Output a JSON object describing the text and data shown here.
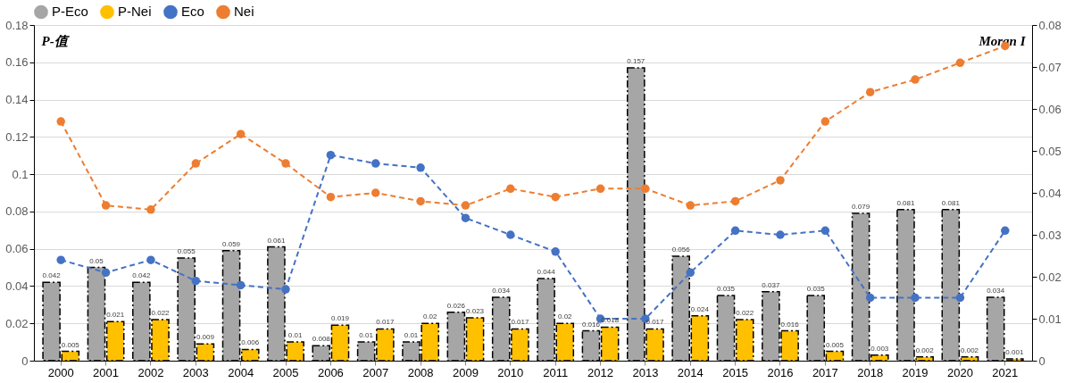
{
  "chart_data": {
    "type": "bar",
    "ylabel": "P-值",
    "y2label": "Moran I",
    "categories": [
      "2000",
      "2001",
      "2002",
      "2003",
      "2004",
      "2005",
      "2006",
      "2007",
      "2008",
      "2009",
      "2010",
      "2011",
      "2012",
      "2013",
      "2014",
      "2015",
      "2016",
      "2017",
      "2018",
      "2019",
      "2020",
      "2021"
    ],
    "series": [
      {
        "name": "P-Eco",
        "color": "#a6a6a6",
        "values": [
          0.042,
          0.05,
          0.042,
          0.055,
          0.059,
          0.061,
          0.008,
          0.01,
          0.01,
          0.026,
          0.034,
          0.044,
          0.016,
          0.157,
          0.056,
          0.035,
          0.037,
          0.035,
          0.079,
          0.081,
          0.081,
          0.034
        ],
        "value_labels": [
          "0.042",
          "0.05",
          "0.042",
          "0.055",
          "0.059",
          "0.061",
          "0.008",
          "0.01",
          "0.01",
          "0.026",
          "0.034",
          "0.044",
          "0.016",
          "0.157",
          "0.056",
          "0.035",
          "0.037",
          "0.035",
          "0.079",
          "0.081",
          "0.081",
          "0.034"
        ]
      },
      {
        "name": "P-Nei",
        "color": "#ffc000",
        "values": [
          0.005,
          0.021,
          0.022,
          0.009,
          0.006,
          0.01,
          0.019,
          0.017,
          0.02,
          0.023,
          0.017,
          0.02,
          0.018,
          0.017,
          0.024,
          0.022,
          0.016,
          0.005,
          0.003,
          0.002,
          0.002,
          0.001
        ],
        "value_labels": [
          "0.005",
          "0.021",
          "0.022",
          "0.009",
          "0.006",
          "0.01",
          "0.019",
          "0.017",
          "0.02",
          "0.023",
          "0.017",
          "0.02",
          "0.018",
          "0.017",
          "0.024",
          "0.022",
          "0.016",
          "0.005",
          "0.003",
          "0.002",
          "0.002",
          "0.001"
        ]
      },
      {
        "name": "Eco",
        "type": "line",
        "axis": "y2",
        "color": "#4472c4",
        "line_style": "dashed",
        "values": [
          0.024,
          0.021,
          0.024,
          0.019,
          0.018,
          0.017,
          0.049,
          0.047,
          0.046,
          0.034,
          0.03,
          0.026,
          0.01,
          0.01,
          0.021,
          0.031,
          0.03,
          0.031,
          0.015,
          0.015,
          0.015,
          0.031
        ]
      },
      {
        "name": "Nei",
        "type": "line",
        "axis": "y2",
        "color": "#ed7d31",
        "line_style": "dashed",
        "values": [
          0.057,
          0.037,
          0.036,
          0.047,
          0.054,
          0.047,
          0.039,
          0.04,
          0.038,
          0.037,
          0.041,
          0.039,
          0.041,
          0.041,
          0.037,
          0.038,
          0.043,
          0.057,
          0.064,
          0.067,
          0.071,
          0.075
        ]
      }
    ],
    "ylim": [
      0,
      0.18
    ],
    "yticks": [
      0,
      0.02,
      0.04,
      0.06,
      0.08,
      0.1,
      0.12,
      0.14,
      0.16,
      0.18
    ],
    "y2lim": [
      0,
      0.08
    ],
    "y2ticks": [
      0,
      0.01,
      0.02,
      0.03,
      0.04,
      0.05,
      0.06,
      0.07,
      0.08
    ],
    "grid": "y",
    "legend": "top",
    "marker": "circle"
  }
}
